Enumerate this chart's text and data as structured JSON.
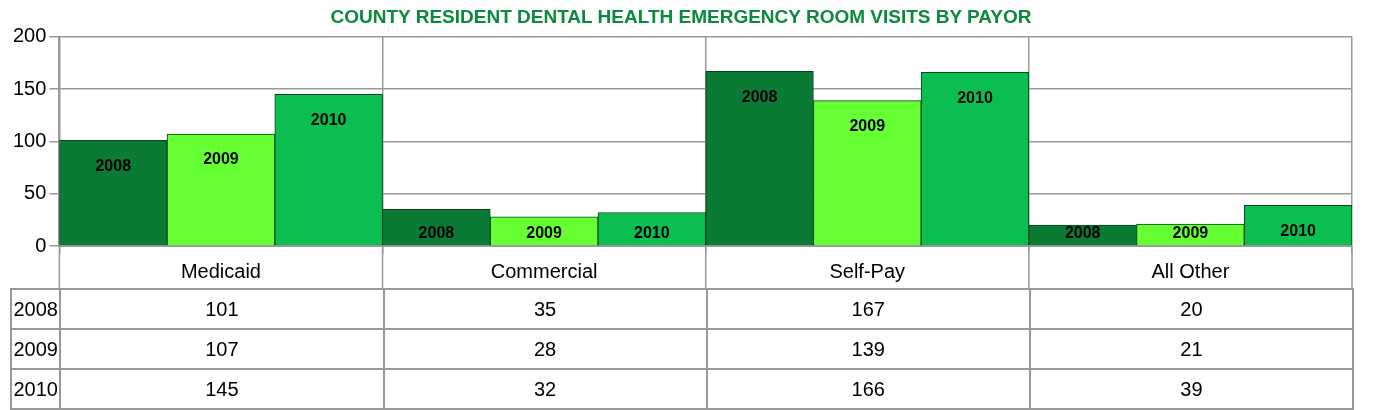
{
  "chart_data": {
    "type": "bar",
    "title": "COUNTY RESIDENT DENTAL HEALTH EMERGENCY ROOM VISITS BY PAYOR",
    "categories": [
      "Medicaid",
      "Commercial",
      "Self-Pay",
      "All Other"
    ],
    "series": [
      {
        "name": "2008",
        "color": "#0a7a35",
        "values": [
          101,
          35,
          167,
          20
        ]
      },
      {
        "name": "2009",
        "color": "#66ff33",
        "values": [
          107,
          28,
          139,
          21
        ]
      },
      {
        "name": "2010",
        "color": "#0abf50",
        "values": [
          145,
          32,
          166,
          39
        ]
      }
    ],
    "ylim": [
      0,
      200
    ],
    "yticks": [
      0,
      50,
      100,
      150,
      200
    ],
    "grid": true,
    "legend": false,
    "data_labels": true
  }
}
